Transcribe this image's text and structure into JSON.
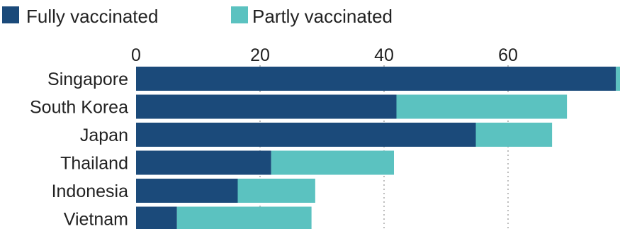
{
  "chart_data": {
    "type": "bar",
    "orientation": "horizontal",
    "stacked": true,
    "title": "",
    "xlabel": "",
    "ylabel": "",
    "categories": [
      "Singapore",
      "South Korea",
      "Japan",
      "Thailand",
      "Indonesia",
      "Vietnam"
    ],
    "series": [
      {
        "name": "Fully vaccinated",
        "color": "#1b4a7a",
        "values": [
          77.4,
          42.0,
          54.8,
          21.8,
          16.4,
          6.6
        ]
      },
      {
        "name": "Partly vaccinated",
        "color": "#5bc2c0",
        "values": [
          0.7,
          27.5,
          12.3,
          19.8,
          12.5,
          21.7
        ]
      }
    ],
    "xlim": [
      0,
      78
    ],
    "xticks": [
      0,
      20,
      40,
      60
    ],
    "grid": true,
    "legend_position": "top-left"
  }
}
